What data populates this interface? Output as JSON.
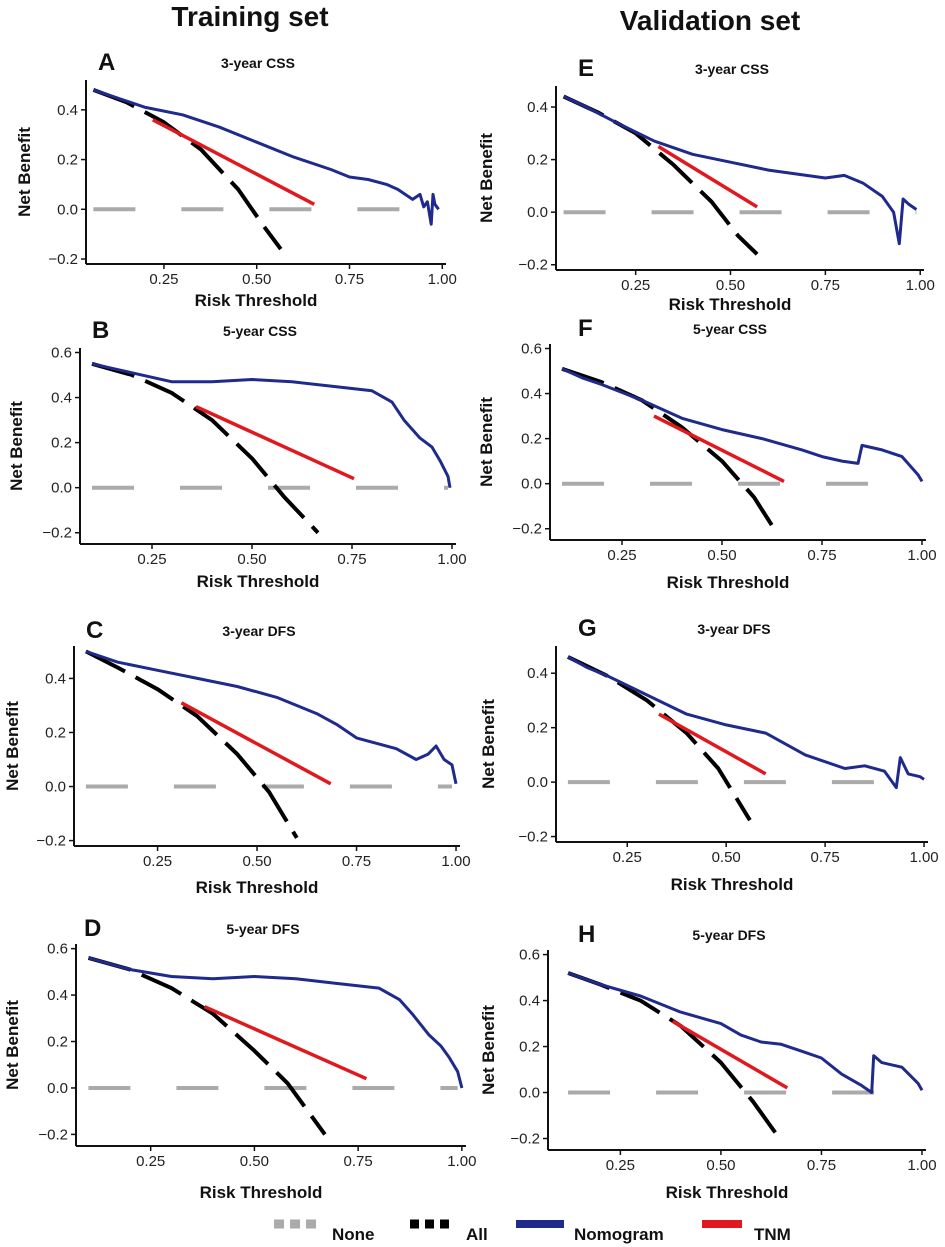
{
  "column_titles": {
    "left": "Training set",
    "right": "Validation set"
  },
  "legend": [
    {
      "name": "None",
      "color": "#aaaaaa",
      "style": "dashed"
    },
    {
      "name": "All",
      "color": "#000000",
      "style": "dashed"
    },
    {
      "name": "Nomogram",
      "color": "#1f2a8c",
      "style": "solid"
    },
    {
      "name": "TNM",
      "color": "#e0191e",
      "style": "solid"
    }
  ],
  "chart_data": [
    {
      "panel": "A",
      "type": "line",
      "title": "3-year CSS",
      "xlabel": "Risk Threshold",
      "ylabel": "Net Benefit",
      "xlim": [
        0.04,
        1.01
      ],
      "ylim": [
        -0.22,
        0.52
      ],
      "xticks": [
        "0.25",
        "0.50",
        "0.75",
        "1.00"
      ],
      "xtick_values": [
        0.25,
        0.5,
        0.75,
        1.0
      ],
      "yticks": [
        "−0.2",
        "0.0",
        "0.2",
        "0.4"
      ],
      "ytick_values": [
        -0.2,
        0.0,
        0.2,
        0.4
      ],
      "series": [
        {
          "name": "None",
          "x": [
            0.06,
            0.99
          ],
          "y": [
            0,
            0
          ]
        },
        {
          "name": "All",
          "x": [
            0.06,
            0.15,
            0.25,
            0.35,
            0.45,
            0.52,
            0.565
          ],
          "y": [
            0.48,
            0.43,
            0.35,
            0.24,
            0.08,
            -0.07,
            -0.16
          ]
        },
        {
          "name": "Nomogram",
          "x": [
            0.06,
            0.12,
            0.2,
            0.3,
            0.4,
            0.5,
            0.6,
            0.7,
            0.75,
            0.8,
            0.85,
            0.88,
            0.9,
            0.92,
            0.94,
            0.95,
            0.96,
            0.97,
            0.975,
            0.98,
            0.99
          ],
          "y": [
            0.48,
            0.45,
            0.41,
            0.38,
            0.33,
            0.27,
            0.21,
            0.16,
            0.13,
            0.12,
            0.1,
            0.08,
            0.06,
            0.04,
            0.06,
            0.01,
            0.03,
            -0.06,
            0.06,
            0.02,
            0.0
          ]
        },
        {
          "name": "TNM",
          "x": [
            0.22,
            0.655
          ],
          "y": [
            0.36,
            0.02
          ]
        }
      ]
    },
    {
      "panel": "B",
      "type": "line",
      "title": "5-year CSS",
      "xlabel": "Risk Threshold",
      "ylabel": "Net Benefit",
      "xlim": [
        0.07,
        1.01
      ],
      "ylim": [
        -0.25,
        0.62
      ],
      "xticks": [
        "0.25",
        "0.50",
        "0.75",
        "1.00"
      ],
      "xtick_values": [
        0.25,
        0.5,
        0.75,
        1.0
      ],
      "yticks": [
        "−0.2",
        "0.0",
        "0.2",
        "0.4",
        "0.6"
      ],
      "ytick_values": [
        -0.2,
        0.0,
        0.2,
        0.4,
        0.6
      ],
      "series": [
        {
          "name": "None",
          "x": [
            0.1,
            0.99
          ],
          "y": [
            0,
            0
          ]
        },
        {
          "name": "All",
          "x": [
            0.1,
            0.2,
            0.3,
            0.4,
            0.5,
            0.58,
            0.665
          ],
          "y": [
            0.55,
            0.5,
            0.42,
            0.3,
            0.13,
            -0.04,
            -0.2
          ]
        },
        {
          "name": "Nomogram",
          "x": [
            0.1,
            0.2,
            0.3,
            0.4,
            0.5,
            0.6,
            0.7,
            0.8,
            0.85,
            0.88,
            0.92,
            0.95,
            0.97,
            0.99,
            0.995
          ],
          "y": [
            0.55,
            0.51,
            0.47,
            0.47,
            0.48,
            0.47,
            0.45,
            0.43,
            0.38,
            0.3,
            0.22,
            0.18,
            0.12,
            0.05,
            0.0
          ]
        },
        {
          "name": "TNM",
          "x": [
            0.36,
            0.755
          ],
          "y": [
            0.36,
            0.04
          ]
        }
      ]
    },
    {
      "panel": "C",
      "type": "line",
      "title": "3-year DFS",
      "xlabel": "Risk Threshold",
      "ylabel": "Net Benefit",
      "xlim": [
        0.04,
        1.01
      ],
      "ylim": [
        -0.22,
        0.52
      ],
      "xticks": [
        "0.25",
        "0.50",
        "0.75",
        "1.00"
      ],
      "xtick_values": [
        0.25,
        0.5,
        0.75,
        1.0
      ],
      "yticks": [
        "−0.2",
        "0.0",
        "0.2",
        "0.4"
      ],
      "ytick_values": [
        -0.2,
        0.0,
        0.2,
        0.4
      ],
      "series": [
        {
          "name": "None",
          "x": [
            0.07,
            0.99
          ],
          "y": [
            0,
            0
          ]
        },
        {
          "name": "All",
          "x": [
            0.07,
            0.15,
            0.25,
            0.35,
            0.45,
            0.53,
            0.6
          ],
          "y": [
            0.5,
            0.44,
            0.36,
            0.26,
            0.12,
            -0.02,
            -0.19
          ]
        },
        {
          "name": "Nomogram",
          "x": [
            0.07,
            0.15,
            0.25,
            0.35,
            0.45,
            0.55,
            0.65,
            0.7,
            0.75,
            0.8,
            0.85,
            0.9,
            0.93,
            0.95,
            0.97,
            0.99,
            1.0
          ],
          "y": [
            0.5,
            0.46,
            0.43,
            0.4,
            0.37,
            0.33,
            0.27,
            0.23,
            0.18,
            0.16,
            0.14,
            0.1,
            0.12,
            0.15,
            0.1,
            0.08,
            0.01
          ]
        },
        {
          "name": "TNM",
          "x": [
            0.31,
            0.685
          ],
          "y": [
            0.31,
            0.01
          ]
        }
      ]
    },
    {
      "panel": "D",
      "type": "line",
      "title": "5-year DFS",
      "xlabel": "Risk Threshold",
      "ylabel": "Net Benefit",
      "xlim": [
        0.07,
        1.01
      ],
      "ylim": [
        -0.25,
        0.62
      ],
      "xticks": [
        "0.25",
        "0.50",
        "0.75",
        "1.00"
      ],
      "xtick_values": [
        0.25,
        0.5,
        0.75,
        1.0
      ],
      "yticks": [
        "−0.2",
        "0.0",
        "0.2",
        "0.4",
        "0.6"
      ],
      "ytick_values": [
        -0.2,
        0.0,
        0.2,
        0.4,
        0.6
      ],
      "series": [
        {
          "name": "None",
          "x": [
            0.1,
            0.99
          ],
          "y": [
            0,
            0
          ]
        },
        {
          "name": "All",
          "x": [
            0.1,
            0.2,
            0.3,
            0.4,
            0.5,
            0.58,
            0.67
          ],
          "y": [
            0.56,
            0.51,
            0.43,
            0.32,
            0.16,
            0.02,
            -0.2
          ]
        },
        {
          "name": "Nomogram",
          "x": [
            0.1,
            0.2,
            0.3,
            0.4,
            0.5,
            0.6,
            0.7,
            0.8,
            0.85,
            0.88,
            0.92,
            0.95,
            0.97,
            0.99,
            1.0
          ],
          "y": [
            0.56,
            0.51,
            0.48,
            0.47,
            0.48,
            0.47,
            0.45,
            0.43,
            0.38,
            0.32,
            0.23,
            0.18,
            0.13,
            0.07,
            0.0
          ]
        },
        {
          "name": "TNM",
          "x": [
            0.38,
            0.77
          ],
          "y": [
            0.35,
            0.04
          ]
        }
      ]
    },
    {
      "panel": "E",
      "type": "line",
      "title": "3-year CSS",
      "xlabel": "Risk Threshold",
      "ylabel": "Net Benefit",
      "xlim": [
        0.04,
        1.01
      ],
      "ylim": [
        -0.22,
        0.48
      ],
      "xticks": [
        "0.25",
        "0.50",
        "0.75",
        "1.00"
      ],
      "xtick_values": [
        0.25,
        0.5,
        0.75,
        1.0
      ],
      "yticks": [
        "−0.2",
        "0.0",
        "0.2",
        "0.4"
      ],
      "ytick_values": [
        -0.2,
        0.0,
        0.2,
        0.4
      ],
      "series": [
        {
          "name": "None",
          "x": [
            0.06,
            0.99
          ],
          "y": [
            0,
            0
          ]
        },
        {
          "name": "All",
          "x": [
            0.06,
            0.15,
            0.25,
            0.35,
            0.45,
            0.52,
            0.57
          ],
          "y": [
            0.44,
            0.38,
            0.3,
            0.18,
            0.04,
            -0.09,
            -0.16
          ]
        },
        {
          "name": "Nomogram",
          "x": [
            0.06,
            0.12,
            0.2,
            0.3,
            0.4,
            0.5,
            0.6,
            0.7,
            0.75,
            0.8,
            0.85,
            0.9,
            0.93,
            0.945,
            0.955,
            0.97,
            0.99
          ],
          "y": [
            0.44,
            0.4,
            0.34,
            0.27,
            0.22,
            0.19,
            0.16,
            0.14,
            0.13,
            0.14,
            0.11,
            0.06,
            0.0,
            -0.12,
            0.05,
            0.03,
            0.01
          ]
        },
        {
          "name": "TNM",
          "x": [
            0.31,
            0.57
          ],
          "y": [
            0.25,
            0.02
          ]
        }
      ]
    },
    {
      "panel": "F",
      "type": "line",
      "title": "5-year CSS",
      "xlabel": "Risk Threshold",
      "ylabel": "Net Benefit",
      "xlim": [
        0.07,
        1.01
      ],
      "ylim": [
        -0.25,
        0.62
      ],
      "xticks": [
        "0.25",
        "0.50",
        "0.75",
        "1.00"
      ],
      "xtick_values": [
        0.25,
        0.5,
        0.75,
        1.0
      ],
      "yticks": [
        "−0.2",
        "0.0",
        "0.2",
        "0.4",
        "0.6"
      ],
      "ytick_values": [
        -0.2,
        0.0,
        0.2,
        0.4,
        0.6
      ],
      "series": [
        {
          "name": "None",
          "x": [
            0.1,
            0.88
          ],
          "y": [
            0,
            0
          ]
        },
        {
          "name": "All",
          "x": [
            0.1,
            0.2,
            0.3,
            0.4,
            0.5,
            0.58,
            0.63
          ],
          "y": [
            0.51,
            0.45,
            0.37,
            0.25,
            0.1,
            -0.06,
            -0.2
          ]
        },
        {
          "name": "Nomogram",
          "x": [
            0.1,
            0.15,
            0.2,
            0.3,
            0.4,
            0.5,
            0.6,
            0.7,
            0.75,
            0.8,
            0.84,
            0.85,
            0.9,
            0.95,
            0.99,
            1.0
          ],
          "y": [
            0.51,
            0.47,
            0.44,
            0.37,
            0.29,
            0.24,
            0.2,
            0.15,
            0.12,
            0.1,
            0.09,
            0.17,
            0.15,
            0.12,
            0.04,
            0.01
          ]
        },
        {
          "name": "TNM",
          "x": [
            0.33,
            0.655
          ],
          "y": [
            0.3,
            0.01
          ]
        }
      ]
    },
    {
      "panel": "G",
      "type": "line",
      "title": "3-year DFS",
      "xlabel": "Risk Threshold",
      "ylabel": "Net Benefit",
      "xlim": [
        0.07,
        1.01
      ],
      "ylim": [
        -0.22,
        0.5
      ],
      "xticks": [
        "0.25",
        "0.50",
        "0.75",
        "1.00"
      ],
      "xtick_values": [
        0.25,
        0.5,
        0.75,
        1.0
      ],
      "yticks": [
        "−0.2",
        "0.0",
        "0.2",
        "0.4"
      ],
      "ytick_values": [
        -0.2,
        0.0,
        0.2,
        0.4
      ],
      "series": [
        {
          "name": "None",
          "x": [
            0.1,
            0.99
          ],
          "y": [
            0,
            0
          ]
        },
        {
          "name": "All",
          "x": [
            0.1,
            0.2,
            0.3,
            0.4,
            0.48,
            0.56
          ],
          "y": [
            0.46,
            0.39,
            0.3,
            0.18,
            0.05,
            -0.14
          ]
        },
        {
          "name": "Nomogram",
          "x": [
            0.1,
            0.15,
            0.2,
            0.3,
            0.4,
            0.5,
            0.6,
            0.7,
            0.8,
            0.85,
            0.9,
            0.93,
            0.94,
            0.96,
            0.99,
            1.0
          ],
          "y": [
            0.46,
            0.42,
            0.39,
            0.32,
            0.25,
            0.21,
            0.18,
            0.1,
            0.05,
            0.06,
            0.04,
            -0.02,
            0.09,
            0.03,
            0.02,
            0.01
          ]
        },
        {
          "name": "TNM",
          "x": [
            0.33,
            0.6
          ],
          "y": [
            0.25,
            0.03
          ]
        }
      ]
    },
    {
      "panel": "H",
      "type": "line",
      "title": "5-year DFS",
      "xlabel": "Risk Threshold",
      "ylabel": "Net Benefit",
      "xlim": [
        0.07,
        1.01
      ],
      "ylim": [
        -0.25,
        0.62
      ],
      "xticks": [
        "0.25",
        "0.50",
        "0.75",
        "1.00"
      ],
      "xtick_values": [
        0.25,
        0.5,
        0.75,
        1.0
      ],
      "yticks": [
        "−0.2",
        "0.0",
        "0.2",
        "0.4",
        "0.6"
      ],
      "ytick_values": [
        -0.2,
        0.0,
        0.2,
        0.4,
        0.6
      ],
      "series": [
        {
          "name": "None",
          "x": [
            0.12,
            0.99
          ],
          "y": [
            0,
            0
          ]
        },
        {
          "name": "All",
          "x": [
            0.12,
            0.2,
            0.3,
            0.4,
            0.5,
            0.58,
            0.65
          ],
          "y": [
            0.52,
            0.47,
            0.4,
            0.29,
            0.13,
            -0.04,
            -0.21
          ]
        },
        {
          "name": "Nomogram",
          "x": [
            0.12,
            0.2,
            0.3,
            0.4,
            0.5,
            0.55,
            0.6,
            0.65,
            0.7,
            0.75,
            0.8,
            0.85,
            0.875,
            0.88,
            0.9,
            0.95,
            0.99,
            1.0
          ],
          "y": [
            0.52,
            0.47,
            0.42,
            0.35,
            0.3,
            0.25,
            0.22,
            0.21,
            0.18,
            0.15,
            0.08,
            0.03,
            0.0,
            0.16,
            0.13,
            0.11,
            0.04,
            0.01
          ]
        },
        {
          "name": "TNM",
          "x": [
            0.38,
            0.665
          ],
          "y": [
            0.31,
            0.02
          ]
        }
      ]
    }
  ]
}
